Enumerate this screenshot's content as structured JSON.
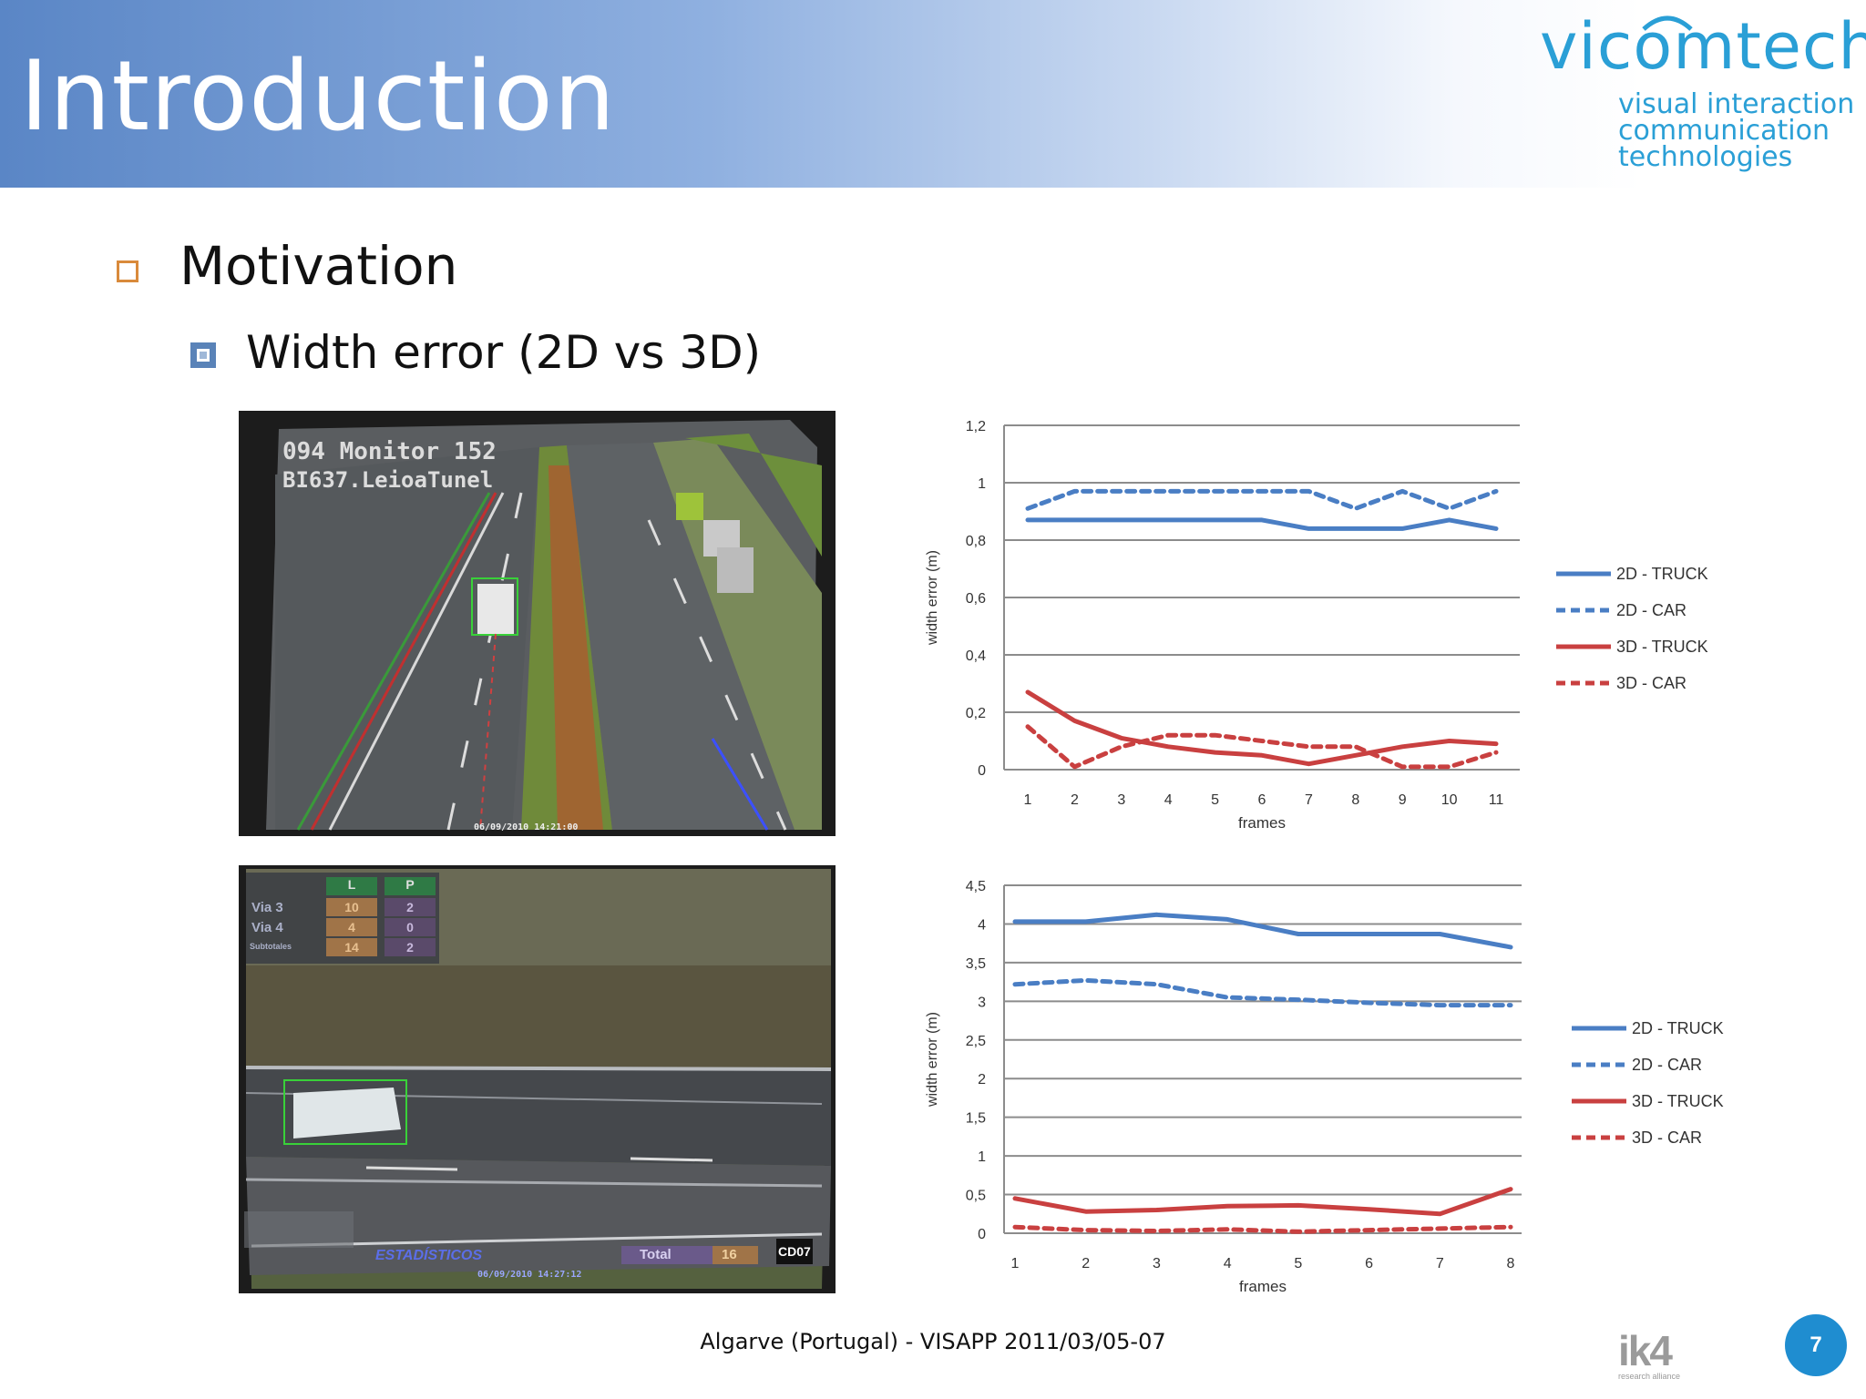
{
  "slide": {
    "title": "Introduction",
    "bullet1": "Motivation",
    "bullet2": "Width error  (2D vs 3D)",
    "footer": "Algarve (Portugal) - VISAPP 2011/03/05-07",
    "page_number": "7"
  },
  "logo": {
    "brand": "vicomtech",
    "line1": "visual interaction",
    "line2": "communication",
    "line3": "technologies",
    "color": "#2a9fd6"
  },
  "ik4_logo": {
    "mark": "ik4",
    "tagline": "research alliance"
  },
  "camera1": {
    "overlay_line1": "094 Monitor 152",
    "overlay_line2": "BI637.LeioaTunel",
    "timestamp": "06/09/2010  14:21:00"
  },
  "camera2": {
    "table_headers": [
      "L",
      "P"
    ],
    "table_rows": [
      {
        "label": "Via 3",
        "l": "10",
        "p": "2"
      },
      {
        "label": "Via 4",
        "l": "4",
        "p": "0"
      },
      {
        "label": "Subtotales",
        "l": "14",
        "p": "2"
      }
    ],
    "bottom_text": "ESTADÍSTICOS",
    "total_label": "Total",
    "total_value": "16",
    "camera_id": "CD07",
    "timestamp": "06/09/2010  14:27:12"
  },
  "chart_data": [
    {
      "type": "line",
      "x": [
        1,
        2,
        3,
        4,
        5,
        6,
        7,
        8,
        9,
        10,
        11
      ],
      "xlabel": "frames",
      "ylabel": "width error (m)",
      "ylim": [
        0,
        1.2
      ],
      "yticks": [
        "0",
        "0,2",
        "0,4",
        "0,6",
        "0,8",
        "1",
        "1,2"
      ],
      "grid": true,
      "legend_position": "right",
      "series": [
        {
          "name": "2D - TRUCK",
          "color": "#4a7ec4",
          "dash": false,
          "values": [
            0.87,
            0.87,
            0.87,
            0.87,
            0.87,
            0.87,
            0.84,
            0.84,
            0.84,
            0.87,
            0.84
          ]
        },
        {
          "name": "2D - CAR",
          "color": "#4a7ec4",
          "dash": true,
          "values": [
            0.91,
            0.97,
            0.97,
            0.97,
            0.97,
            0.97,
            0.97,
            0.91,
            0.97,
            0.91,
            0.97
          ]
        },
        {
          "name": "3D - TRUCK",
          "color": "#c94040",
          "dash": false,
          "values": [
            0.27,
            0.17,
            0.11,
            0.08,
            0.06,
            0.05,
            0.02,
            0.05,
            0.08,
            0.1,
            0.09
          ]
        },
        {
          "name": "3D - CAR",
          "color": "#c94040",
          "dash": true,
          "values": [
            0.15,
            0.01,
            0.08,
            0.12,
            0.12,
            0.1,
            0.08,
            0.08,
            0.01,
            0.01,
            0.06
          ]
        }
      ]
    },
    {
      "type": "line",
      "x": [
        1,
        2,
        3,
        4,
        5,
        6,
        7,
        8
      ],
      "xlabel": "frames",
      "ylabel": "width error (m)",
      "ylim": [
        0,
        4.5
      ],
      "yticks": [
        "0",
        "0,5",
        "1",
        "1,5",
        "2",
        "2,5",
        "3",
        "3,5",
        "4",
        "4,5"
      ],
      "grid": true,
      "legend_position": "right",
      "series": [
        {
          "name": "2D - TRUCK",
          "color": "#4a7ec4",
          "dash": false,
          "values": [
            4.03,
            4.03,
            4.12,
            4.06,
            3.87,
            3.87,
            3.87,
            3.7
          ]
        },
        {
          "name": "2D - CAR",
          "color": "#4a7ec4",
          "dash": true,
          "values": [
            3.22,
            3.27,
            3.22,
            3.05,
            3.02,
            2.98,
            2.95,
            2.95
          ]
        },
        {
          "name": "3D - TRUCK",
          "color": "#c94040",
          "dash": false,
          "values": [
            0.45,
            0.28,
            0.3,
            0.35,
            0.36,
            0.31,
            0.25,
            0.57
          ]
        },
        {
          "name": "3D - CAR",
          "color": "#c94040",
          "dash": true,
          "values": [
            0.08,
            0.04,
            0.03,
            0.05,
            0.02,
            0.04,
            0.06,
            0.08
          ]
        }
      ]
    }
  ]
}
